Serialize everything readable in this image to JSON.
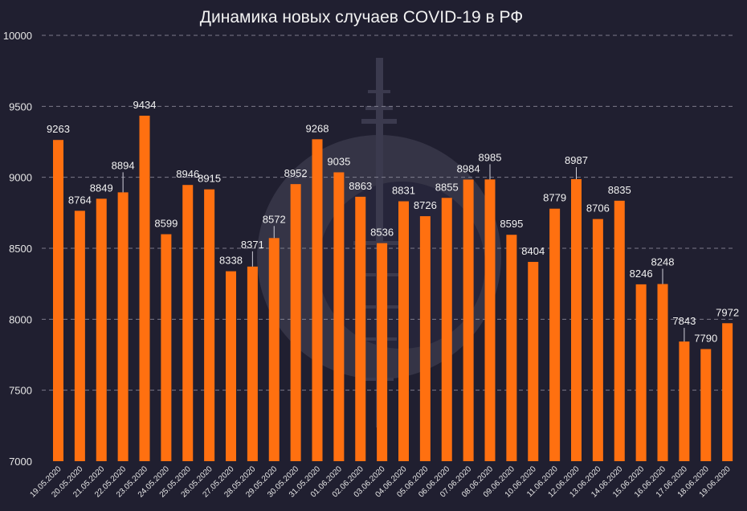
{
  "chart_data": {
    "type": "bar",
    "title": "Динамика новых случаев COVID-19 в РФ",
    "xlabel": "",
    "ylabel": "",
    "ylim": [
      7000,
      10000
    ],
    "yticks": [
      7000,
      7500,
      8000,
      8500,
      9000,
      9500,
      10000
    ],
    "grid": true,
    "legend": "none",
    "categories": [
      "19.05.2020",
      "20.05.2020",
      "21.05.2020",
      "22.05.2020",
      "23.05.2020",
      "24.05.2020",
      "25.05.2020",
      "26.05.2020",
      "27.05.2020",
      "28.05.2020",
      "29.05.2020",
      "30.05.2020",
      "31.05.2020",
      "01.06.2020",
      "02.06.2020",
      "03.06.2020",
      "04.06.2020",
      "05.06.2020",
      "06.06.2020",
      "07.06.2020",
      "08.06.2020",
      "09.06.2020",
      "10.06.2020",
      "11.06.2020",
      "12.06.2020",
      "13.06.2020",
      "14.06.2020",
      "15.06.2020",
      "16.06.2020",
      "17.06.2020",
      "18.06.2020",
      "19.06.2020"
    ],
    "values": [
      9263,
      8764,
      8849,
      8894,
      9434,
      8599,
      8946,
      8915,
      8338,
      8371,
      8572,
      8952,
      9268,
      9035,
      8863,
      8536,
      8831,
      8726,
      8855,
      8984,
      8985,
      8595,
      8404,
      8779,
      8987,
      8706,
      8835,
      8246,
      8248,
      7843,
      7790,
      7972
    ],
    "colors": {
      "bar": "#ff7010",
      "background": "#201f30",
      "grid": "#9a99a8",
      "text": "#f2f2f2"
    }
  },
  "watermark": {
    "icon": "virus-watermark-icon",
    "color": "#3a394a"
  }
}
